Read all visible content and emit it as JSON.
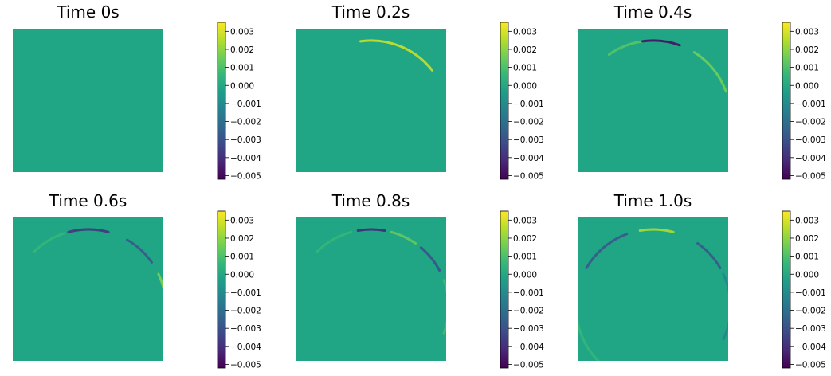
{
  "colors": {
    "background": "#21a685",
    "colormap": [
      "#440154",
      "#482777",
      "#3e4989",
      "#31688e",
      "#26828e",
      "#1f9e89",
      "#35b779",
      "#6ece58",
      "#b5de2b",
      "#fde725"
    ]
  },
  "chart_data": {
    "type": "heatmap",
    "colorbar": {
      "vmin": -0.0052,
      "vmax": 0.0035,
      "ticks": [
        0.003,
        0.002,
        0.001,
        0.0,
        -0.001,
        -0.002,
        -0.003,
        -0.004,
        -0.005
      ],
      "tick_labels": [
        "0.003",
        "0.002",
        "0.001",
        "0.000",
        "−0.001",
        "−0.002",
        "−0.003",
        "−0.004",
        "−0.005"
      ]
    },
    "panels": [
      {
        "title": "Time 0s",
        "wavefront": []
      },
      {
        "title": "Time 0.2s",
        "wavefront": [
          {
            "start_deg": -98,
            "end_deg": -38,
            "value": 0.0028
          }
        ]
      },
      {
        "title": "Time 0.4s",
        "wavefront": [
          {
            "start_deg": -125,
            "end_deg": -98,
            "value": 0.0012
          },
          {
            "start_deg": -98,
            "end_deg": -70,
            "value": -0.0048
          },
          {
            "start_deg": -58,
            "end_deg": -20,
            "value": 0.0016
          }
        ]
      },
      {
        "title": "Time 0.6s",
        "wavefront": [
          {
            "start_deg": -135,
            "end_deg": -108,
            "value": 0.0006
          },
          {
            "start_deg": -105,
            "end_deg": -75,
            "value": -0.0038
          },
          {
            "start_deg": -60,
            "end_deg": -35,
            "value": -0.0028
          },
          {
            "start_deg": -25,
            "end_deg": 5,
            "value": 0.0018
          }
        ]
      },
      {
        "title": "Time 0.8s",
        "wavefront": [
          {
            "start_deg": -135,
            "end_deg": -105,
            "value": 0.0006
          },
          {
            "start_deg": -100,
            "end_deg": -80,
            "value": -0.0042
          },
          {
            "start_deg": -75,
            "end_deg": -55,
            "value": 0.0014
          },
          {
            "start_deg": -50,
            "end_deg": -28,
            "value": -0.003
          },
          {
            "start_deg": -20,
            "end_deg": 20,
            "value": 0.0008
          }
        ]
      },
      {
        "title": "Time 1.0s",
        "wavefront": [
          {
            "start_deg": -150,
            "end_deg": -110,
            "value": -0.0028
          },
          {
            "start_deg": -100,
            "end_deg": -75,
            "value": 0.0024
          },
          {
            "start_deg": -55,
            "end_deg": -30,
            "value": -0.0028
          },
          {
            "start_deg": -25,
            "end_deg": 25,
            "value": -0.0012
          },
          {
            "start_deg": 110,
            "end_deg": 170,
            "value": 0.0006
          }
        ]
      }
    ]
  }
}
